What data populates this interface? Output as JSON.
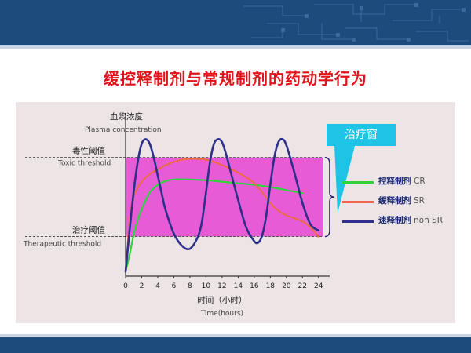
{
  "slide": {
    "title": "缓控释制剂与常规制剂的药动学行为"
  },
  "colors": {
    "header": "#1d4b7c",
    "title": "#e0141c",
    "panel": "#ede4e6",
    "window_fill": "#e85bd6",
    "callout": "#1ec4e6",
    "cr": "#32d23c",
    "sr": "#ec6a4a",
    "nonsr": "#2d2f8a"
  },
  "callout": {
    "label": "治疗窗"
  },
  "chart_data": {
    "type": "line",
    "ylabel_cn": "血浆浓度",
    "ylabel_en": "Plasma concentration",
    "xlabel_cn": "时间（小时）",
    "xlabel_en": "Time(hours)",
    "xlim": [
      0,
      25
    ],
    "ylim": [
      0,
      1
    ],
    "x_ticks": [
      0,
      2,
      4,
      6,
      8,
      10,
      12,
      14,
      16,
      18,
      20,
      22,
      24
    ],
    "thresholds": {
      "toxic": {
        "value": 0.78,
        "label_cn": "毒性阈值",
        "label_en": "Toxic threshold"
      },
      "therapeutic": {
        "value": 0.26,
        "label_cn": "治疗阈值",
        "label_en": "Therapeutic threshold"
      }
    },
    "series": [
      {
        "key": "cr",
        "name_cn": "控释制剂",
        "name_en": "CR",
        "color": "#32d23c",
        "x": [
          0,
          0.5,
          1,
          1.5,
          2,
          2.5,
          3,
          4,
          5,
          6,
          8,
          10,
          12,
          14,
          16,
          18,
          20,
          22
        ],
        "y": [
          0.03,
          0.14,
          0.27,
          0.37,
          0.44,
          0.5,
          0.55,
          0.6,
          0.625,
          0.635,
          0.635,
          0.63,
          0.62,
          0.61,
          0.6,
          0.585,
          0.565,
          0.545
        ]
      },
      {
        "key": "sr",
        "name_cn": "缓释制剂",
        "name_en": "SR",
        "color": "#ec6a4a",
        "x": [
          0,
          0.5,
          1,
          2,
          3,
          4,
          5,
          6,
          7,
          8,
          9,
          10,
          11,
          12,
          13,
          14,
          15,
          16,
          17,
          18,
          19,
          20,
          21,
          22,
          23,
          24
        ],
        "y": [
          0.03,
          0.35,
          0.52,
          0.62,
          0.67,
          0.7,
          0.73,
          0.75,
          0.765,
          0.77,
          0.77,
          0.765,
          0.75,
          0.73,
          0.705,
          0.68,
          0.65,
          0.61,
          0.55,
          0.48,
          0.43,
          0.4,
          0.38,
          0.36,
          0.32,
          0.26
        ]
      },
      {
        "key": "nonsr",
        "name_cn": "速释制剂",
        "name_en": "non SR",
        "color": "#2d2f8a",
        "x": [
          0,
          0.5,
          1,
          1.5,
          2,
          2.5,
          3,
          3.5,
          4,
          4.5,
          5,
          6,
          7,
          8,
          9,
          9.5,
          10,
          10.5,
          11,
          11.5,
          12,
          12.5,
          13,
          14,
          15,
          16,
          16.5,
          17,
          17.5,
          18,
          18.5,
          19,
          19.5,
          20,
          21,
          22,
          23,
          24
        ],
        "y": [
          0.03,
          0.3,
          0.55,
          0.75,
          0.87,
          0.9,
          0.87,
          0.78,
          0.66,
          0.54,
          0.43,
          0.28,
          0.2,
          0.18,
          0.26,
          0.36,
          0.55,
          0.75,
          0.87,
          0.9,
          0.88,
          0.8,
          0.7,
          0.5,
          0.32,
          0.23,
          0.22,
          0.27,
          0.4,
          0.6,
          0.78,
          0.88,
          0.9,
          0.86,
          0.68,
          0.48,
          0.34,
          0.3
        ]
      }
    ]
  }
}
